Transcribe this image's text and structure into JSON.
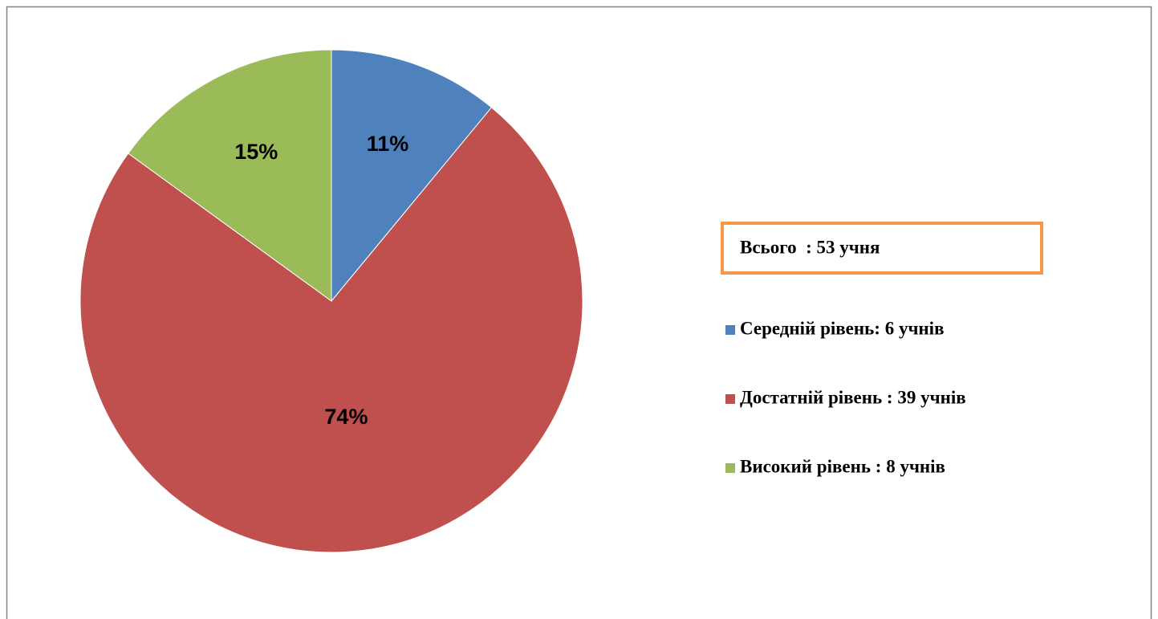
{
  "chart_data": {
    "type": "pie",
    "categories": [
      "Середній рівень: 6 учнів",
      "Достатній рівень : 39 учнів",
      "Високий рівень : 8 учнів"
    ],
    "values": [
      11,
      74,
      15
    ],
    "value_labels": [
      "11%",
      "74%",
      "15%"
    ],
    "colors": [
      "#4f81bd",
      "#c0504d",
      "#9bbb59"
    ],
    "annotation": "Всього  : 53 учня"
  }
}
